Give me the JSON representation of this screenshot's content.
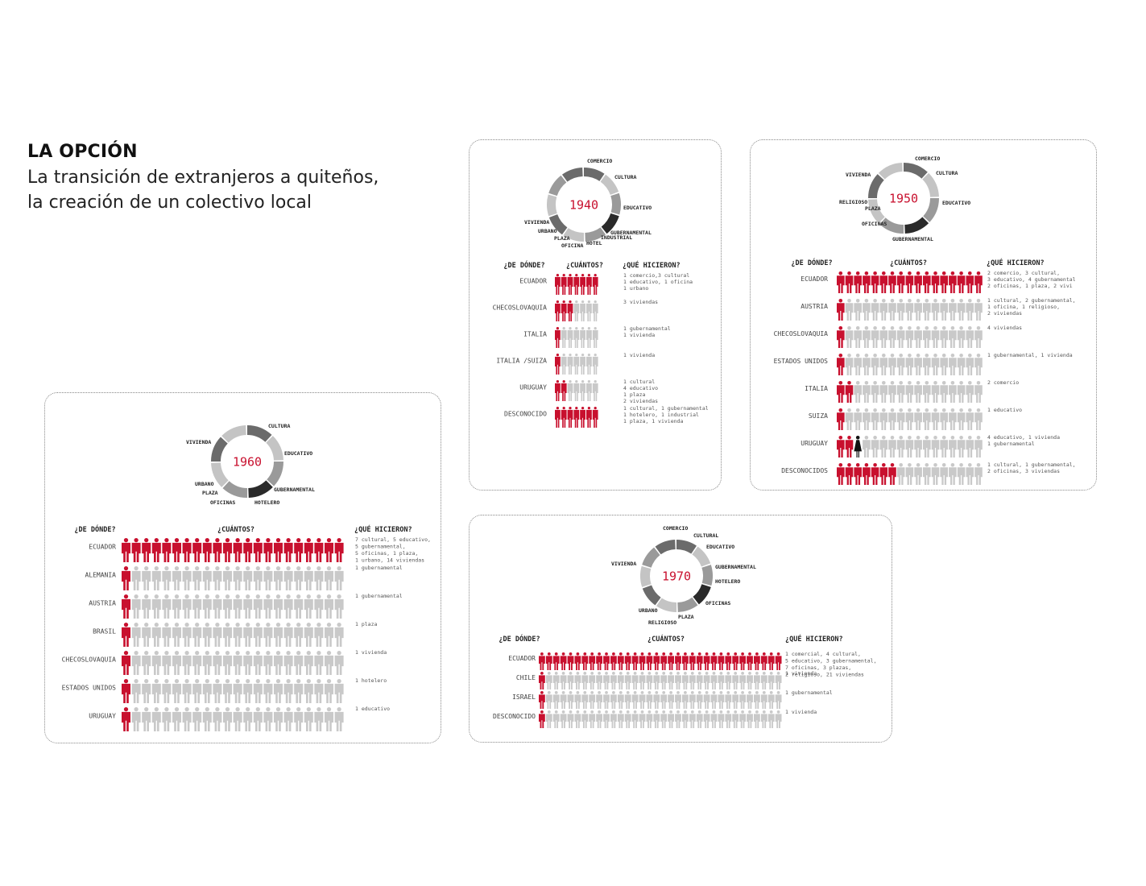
{
  "header": {
    "title": "LA OPCIÓN",
    "subtitle_line1": "La transición de extranjeros a quiteños,",
    "subtitle_line2": "la creación de un colectivo local"
  },
  "colors": {
    "accent": "#c8102e",
    "inactive": "#c9c9c9",
    "dark": "#2a2a2a",
    "ring_dark": "#6b6b6b",
    "ring_mid": "#9a9a9a",
    "ring_light": "#c4c4c4"
  },
  "chart_data": [
    {
      "type": "pictogram",
      "year": "1940",
      "column_headers": [
        "¿DE DÓNDE?",
        "¿CUÁNTOS?",
        "¿QUÉ HICIERON?"
      ],
      "donut_labels": [
        "COMERCIO",
        "CULTURA",
        "EDUCATIVO",
        "GUBERNAMENTAL",
        "INDUSTRIAL",
        "HOTEL",
        "OFICINA",
        "PLAZA",
        "URBANO",
        "VIVIENDA"
      ],
      "total_icons": 7,
      "rows": [
        {
          "country": "ECUADOR",
          "count": 7,
          "activities": [
            "1 comercio,3 cultural",
            "1 educativo, 1 oficina",
            "1 urbano"
          ]
        },
        {
          "country": "CHECOSLOVAQUIA",
          "count": 3,
          "activities": [
            "3 viviendas"
          ]
        },
        {
          "country": "ITALIA",
          "count": 1,
          "activities": [
            "1 gubernamental",
            "1 vivienda"
          ]
        },
        {
          "country": "ITALIA /SUIZA",
          "count": 1,
          "activities": [
            "1 vivienda"
          ]
        },
        {
          "country": "URUGUAY",
          "count": 2,
          "activities": [
            "1 cultural",
            "4 educativo",
            "1 plaza",
            "2 viviendas"
          ]
        },
        {
          "country": "DESCONOCIDO",
          "count": 7,
          "activities": [
            "1 cultural, 1 gubernamental",
            "1 hotelero, 1 industrial",
            "1 plaza, 1 vivienda"
          ]
        }
      ]
    },
    {
      "type": "pictogram",
      "year": "1950",
      "column_headers": [
        "¿DE DÓNDE?",
        "¿CUÁNTOS?",
        "¿QUÉ HICIERON?"
      ],
      "donut_labels": [
        "COMERCIO",
        "CULTURA",
        "EDUCATIVO",
        "GUBERNAMENTAL",
        "OFICINAS",
        "PLAZA",
        "RELIGIOSO",
        "VIVIENDA"
      ],
      "total_icons": 17,
      "rows": [
        {
          "country": "ECUADOR",
          "count": 17,
          "activities": [
            "2 comercio, 3 cultural,",
            "3 educativo, 4 gubernamental",
            "2 oficinas, 1 plaza, 2 vivi"
          ]
        },
        {
          "country": "AUSTRIA",
          "count": 1,
          "activities": [
            "1 cultural, 2 gubernamental,",
            "1 oficina, 1 religioso,",
            "2 viviendas"
          ]
        },
        {
          "country": "CHECOSLOVAQUIA",
          "count": 1,
          "activities": [
            "4 viviendas"
          ]
        },
        {
          "country": "ESTADOS UNIDOS",
          "count": 1,
          "activities": [
            "1 gubernamental, 1 vivienda"
          ]
        },
        {
          "country": "ITALIA",
          "count": 2,
          "activities": [
            "2 comercio"
          ]
        },
        {
          "country": "SUIZA",
          "count": 1,
          "activities": [
            "1 educativo"
          ]
        },
        {
          "country": "URUGUAY",
          "count": 2,
          "female": 1,
          "activities": [
            "4 educativo, 1 vivienda",
            "1 gubernamental"
          ]
        },
        {
          "country": "DESCONOCIDOS",
          "count": 7,
          "activities": [
            "1 cultural, 1 gubernamental,",
            "2 oficinas, 3 viviendas"
          ]
        }
      ]
    },
    {
      "type": "pictogram",
      "year": "1960",
      "column_headers": [
        "¿DE DÓNDE?",
        "¿CUÁNTOS?",
        "¿QUÉ HICIERON?"
      ],
      "donut_labels": [
        "CULTURA",
        "EDUCATIVO",
        "GUBERNAMENTAL",
        "HOTELERO",
        "OFICINAS",
        "PLAZA",
        "URBANO",
        "VIVIENDA"
      ],
      "total_icons": 22,
      "rows": [
        {
          "country": "ECUADOR",
          "count": 22,
          "activities": [
            "7 cultural, 5 educativo,",
            "5 gubernamental,",
            "5 oficinas, 1 plaza,",
            "1 urbano, 14 viviendas"
          ]
        },
        {
          "country": "ALEMANIA",
          "count": 1,
          "activities": [
            "1 gubernamental"
          ]
        },
        {
          "country": "AUSTRIA",
          "count": 1,
          "activities": [
            "1 gubernamental"
          ]
        },
        {
          "country": "BRASIL",
          "count": 1,
          "activities": [
            "1 plaza"
          ]
        },
        {
          "country": "CHECOSLOVAQUIA",
          "count": 1,
          "activities": [
            "1 vivienda"
          ]
        },
        {
          "country": "ESTADOS UNIDOS",
          "count": 1,
          "activities": [
            "1 hotelero"
          ]
        },
        {
          "country": "URUGUAY",
          "count": 1,
          "activities": [
            "1 educativo"
          ]
        }
      ]
    },
    {
      "type": "pictogram",
      "year": "1970",
      "column_headers": [
        "¿DE DÓNDE?",
        "¿CUÁNTOS?",
        "¿QUÉ HICIERON?"
      ],
      "donut_labels": [
        "COMERCIO",
        "CULTURAL",
        "EDUCATIVO",
        "GUBERNAMENTAL",
        "HOTELERO",
        "OFICINAS",
        "PLAZA",
        "RELIGIOSO",
        "URBANO",
        "VIVIENDA"
      ],
      "total_icons": 34,
      "rows": [
        {
          "country": "ECUADOR",
          "count": 34,
          "activities": [
            "1 comercial, 4 cultural,",
            "5 educativo, 3 gubernamental,",
            "7 oficinas, 3 plazas,",
            "2 religioso, 21 viviendas"
          ]
        },
        {
          "country": "CHILE",
          "count": 1,
          "activities": [
            "1 vivienda"
          ]
        },
        {
          "country": "ISRAEL",
          "count": 1,
          "activities": [
            "1 gubernamental"
          ]
        },
        {
          "country": "DESCONOCIDO",
          "count": 1,
          "activities": [
            "1 vivienda"
          ]
        }
      ]
    }
  ]
}
